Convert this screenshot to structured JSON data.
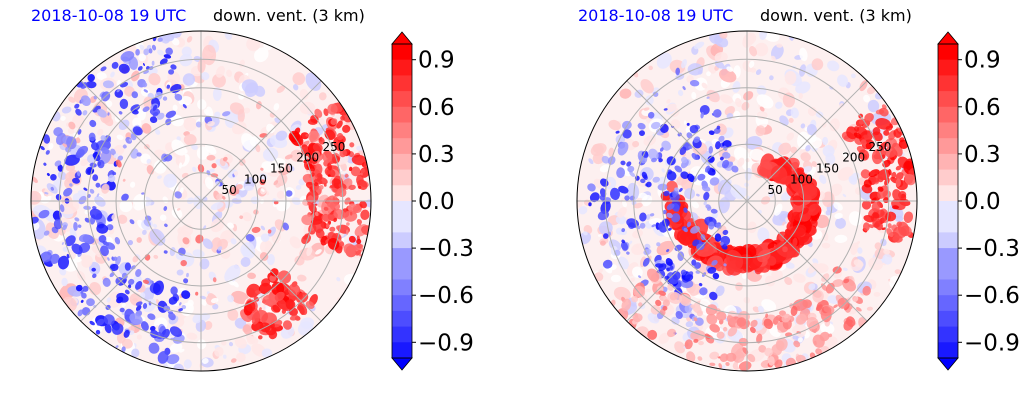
{
  "figure": {
    "colors": {
      "negative": "#0000ff",
      "positive": "#ff0000",
      "neutral": "#ffffff",
      "grid": "#b0b0b0",
      "datetime_text": "#0000ff"
    }
  },
  "chart_data": [
    {
      "type": "heatmap",
      "projection": "polar",
      "datetime": "2018-10-08 19 UTC",
      "variable": "down. vent. (3 km)",
      "radial_ticks": [
        "50",
        "100",
        "150",
        "200",
        "250"
      ],
      "radial_tick_values": [
        50,
        100,
        150,
        200,
        250
      ],
      "radial_max": 300,
      "angular_grid_deg": 45,
      "colorbar": {
        "ticks": [
          "−0.9",
          "−0.6",
          "−0.3",
          "0.0",
          "0.3",
          "0.6",
          "0.9"
        ],
        "tick_values": [
          -0.9,
          -0.6,
          -0.3,
          0.0,
          0.3,
          0.6,
          0.9
        ],
        "range": [
          -1.0,
          1.0
        ],
        "levels": 20,
        "extend": "both"
      }
    },
    {
      "type": "heatmap",
      "projection": "polar",
      "datetime": "2018-10-08 19 UTC",
      "variable": "down. vent. (3 km)",
      "radial_ticks": [
        "50",
        "100",
        "150",
        "200",
        "250"
      ],
      "radial_tick_values": [
        50,
        100,
        150,
        200,
        250
      ],
      "radial_max": 300,
      "angular_grid_deg": 45,
      "colorbar": {
        "ticks": [
          "−0.9",
          "−0.6",
          "−0.3",
          "0.0",
          "0.3",
          "0.6",
          "0.9"
        ],
        "tick_values": [
          -0.9,
          -0.6,
          -0.3,
          0.0,
          0.3,
          0.6,
          0.9
        ],
        "range": [
          -1.0,
          1.0
        ],
        "levels": 20,
        "extend": "both"
      }
    }
  ]
}
